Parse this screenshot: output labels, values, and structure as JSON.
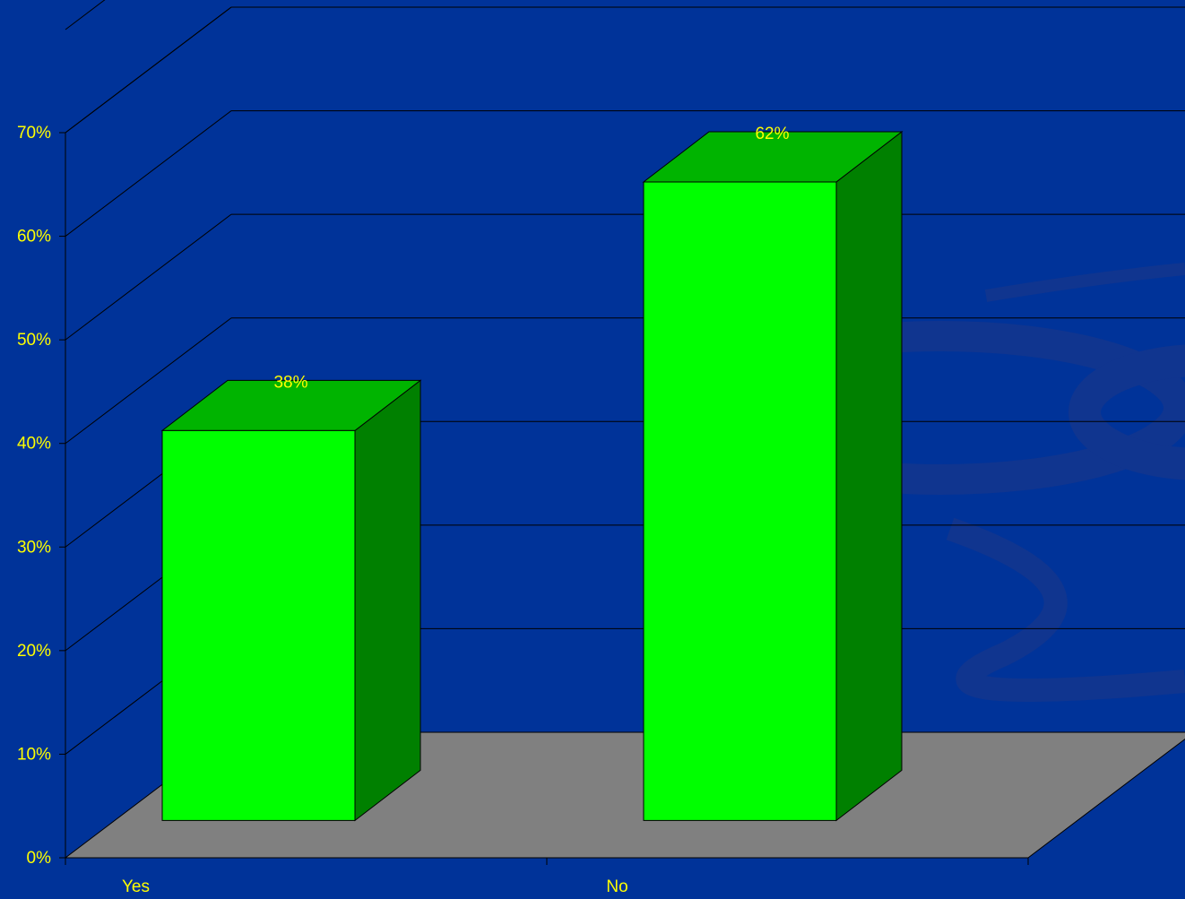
{
  "colors": {
    "background": "#003399",
    "swirl": "#10358f",
    "floor": "#808080",
    "bar_front": "#00ff00",
    "bar_top": "#00b400",
    "bar_side": "#008000",
    "text": "#ffff00",
    "line": "#000000"
  },
  "chart_data": {
    "type": "bar",
    "title": "",
    "xlabel": "",
    "ylabel": "",
    "categories": [
      "Yes",
      "No"
    ],
    "values": [
      38,
      62
    ],
    "data_labels": [
      "38%",
      "62%"
    ],
    "ylim": [
      0,
      70
    ],
    "ytick_step": 10,
    "ytick_labels": [
      "0%",
      "10%",
      "20%",
      "30%",
      "40%",
      "50%",
      "60%",
      "70%"
    ],
    "grid": true,
    "legend": "none",
    "style": "3d"
  }
}
